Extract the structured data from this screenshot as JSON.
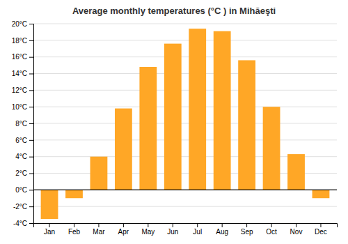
{
  "chart_data": {
    "type": "bar",
    "title": "Average monthly temperatures (°C ) in Mihăeşti",
    "categories": [
      "Jan",
      "Feb",
      "Mar",
      "Apr",
      "May",
      "Jun",
      "Jul",
      "Aug",
      "Sep",
      "Oct",
      "Nov",
      "Dec"
    ],
    "values": [
      -3.5,
      -1.0,
      4.0,
      9.8,
      14.8,
      17.6,
      19.4,
      19.1,
      15.6,
      10.0,
      4.3,
      -1.0
    ],
    "color": "#FFA726",
    "ylim": [
      -4,
      20
    ],
    "yticks": [
      {
        "value": -4,
        "label": "-4°C"
      },
      {
        "value": -2,
        "label": "-2°C"
      },
      {
        "value": 0,
        "label": "0°C"
      },
      {
        "value": 2,
        "label": "2°C"
      },
      {
        "value": 4,
        "label": "4°C"
      },
      {
        "value": 6,
        "label": "6°C"
      },
      {
        "value": 8,
        "label": "8°C"
      },
      {
        "value": 10,
        "label": "10°C"
      },
      {
        "value": 12,
        "label": "12°C"
      },
      {
        "value": 14,
        "label": "14°C"
      },
      {
        "value": 16,
        "label": "16°C"
      },
      {
        "value": 18,
        "label": "18°C"
      },
      {
        "value": 20,
        "label": "20°C"
      }
    ],
    "grid": true
  }
}
